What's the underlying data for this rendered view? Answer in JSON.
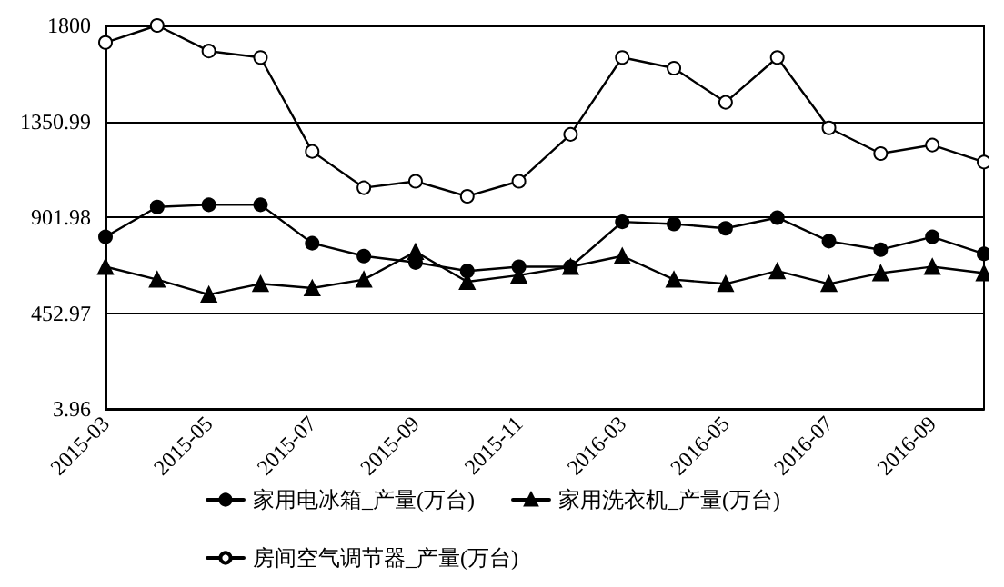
{
  "chart_data": {
    "type": "line",
    "categories": [
      "2015-03",
      null,
      "2015-05",
      null,
      "2015-07",
      null,
      "2015-09",
      null,
      "2015-11",
      null,
      "2016-03",
      null,
      "2016-05",
      null,
      "2016-07",
      null,
      "2016-09",
      null
    ],
    "series": [
      {
        "name": "家用电冰箱_产量(万台)",
        "color": "#000000",
        "marker": "circle",
        "values": [
          810,
          950,
          960,
          960,
          780,
          720,
          690,
          650,
          670,
          670,
          880,
          870,
          850,
          900,
          790,
          750,
          810,
          730
        ]
      },
      {
        "name": "家用洗衣机_产量(万台)",
        "color": "#000000",
        "marker": "triangle",
        "values": [
          670,
          610,
          540,
          590,
          570,
          610,
          740,
          600,
          630,
          670,
          720,
          610,
          590,
          650,
          590,
          640,
          670,
          640
        ]
      },
      {
        "name": "房间空气调节器_产量(万台)",
        "color": "#000000",
        "marker": "open circle",
        "values": [
          1720,
          1800,
          1680,
          1650,
          1210,
          1040,
          1070,
          1000,
          1070,
          1290,
          1650,
          1600,
          1440,
          1650,
          1320,
          1200,
          1240,
          1160
        ]
      }
    ],
    "ylim": [
      3.96,
      1800
    ],
    "yticks": [
      3.96,
      452.97,
      901.98,
      1350.99,
      1800
    ],
    "grid": "y",
    "legend": "bottom",
    "line_style": "solid"
  }
}
